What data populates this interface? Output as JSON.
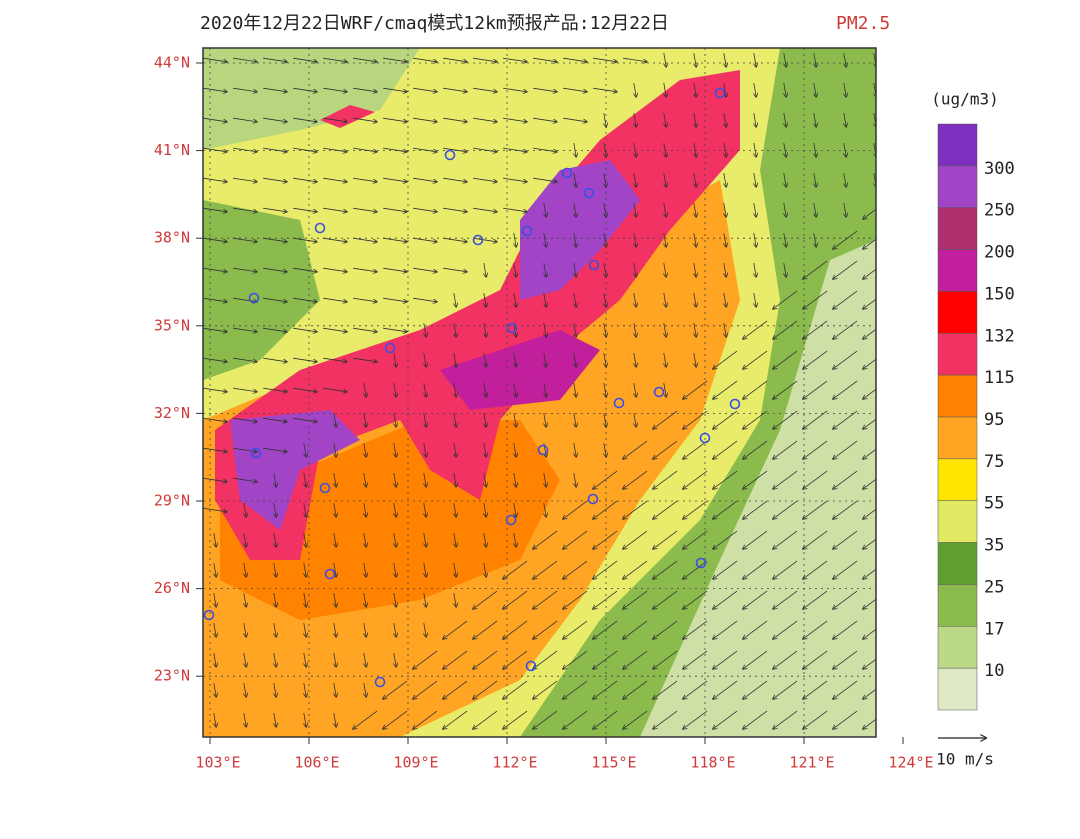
{
  "title": "2020年12月22日WRF/cmaq模式12km预报产品:12月22日",
  "pollutant": "PM2.5",
  "lat_labels": [
    "44°N",
    "41°N",
    "38°N",
    "35°N",
    "32°N",
    "29°N",
    "26°N",
    "23°N"
  ],
  "lon_labels": [
    "103°E",
    "106°E",
    "109°E",
    "112°E",
    "115°E",
    "118°E",
    "121°E",
    "124°E"
  ],
  "legend": {
    "unit": "(ug/m3)",
    "labels": [
      "300",
      "250",
      "200",
      "150",
      "132",
      "115",
      "95",
      "75",
      "55",
      "35",
      "25",
      "17",
      "10"
    ],
    "colors": [
      "#7d2fbf",
      "#a145c6",
      "#ad2f6e",
      "#c21f9c",
      "#ff0000",
      "#f23262",
      "#ff8200",
      "#ffa523",
      "#ffe500",
      "#e0ea62",
      "#5f9e31",
      "#8abb4c",
      "#bcd98a",
      "#dde8c4"
    ]
  },
  "wind_scale": "10 m/s"
}
